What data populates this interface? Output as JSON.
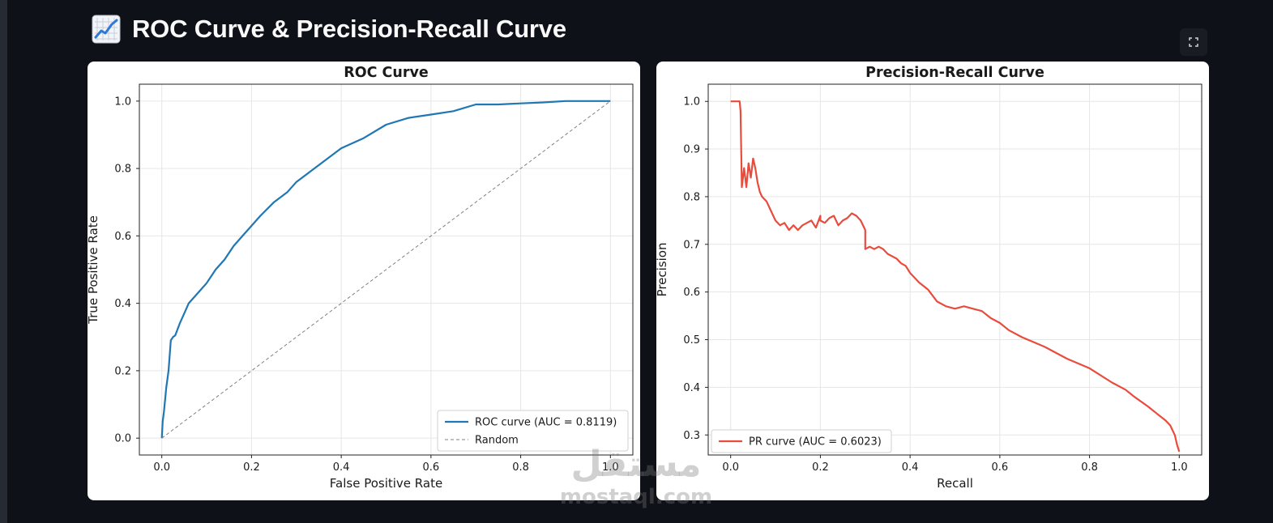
{
  "page": {
    "title": "ROC Curve & Precision-Recall Curve",
    "icon": "chart-increasing-icon",
    "background": "#0e1117",
    "fullscreen_icon": "expand-icon"
  },
  "watermark": {
    "arabic": "مستقل",
    "latin": "mostaql.com"
  },
  "chart_data": [
    {
      "type": "line",
      "title": "ROC Curve",
      "xlabel": "False Positive Rate",
      "ylabel": "True Positive Rate",
      "xlim": [
        -0.05,
        1.05
      ],
      "ylim": [
        -0.05,
        1.05
      ],
      "xticks": [
        "0.0",
        "0.2",
        "0.4",
        "0.6",
        "0.8",
        "1.0"
      ],
      "yticks": [
        "0.0",
        "0.2",
        "0.4",
        "0.6",
        "0.8",
        "1.0"
      ],
      "grid": true,
      "legend_position": "lower-right",
      "series": [
        {
          "name": "ROC curve (AUC = 0.8119)",
          "color": "#1f77b4",
          "style": "solid",
          "x": [
            0,
            0.002,
            0.005,
            0.01,
            0.015,
            0.02,
            0.025,
            0.03,
            0.04,
            0.05,
            0.06,
            0.08,
            0.1,
            0.12,
            0.14,
            0.16,
            0.18,
            0.2,
            0.22,
            0.25,
            0.28,
            0.3,
            0.33,
            0.36,
            0.4,
            0.45,
            0.5,
            0.55,
            0.6,
            0.65,
            0.7,
            0.75,
            0.8,
            0.85,
            0.9,
            0.95,
            1.0
          ],
          "y": [
            0,
            0.05,
            0.08,
            0.15,
            0.2,
            0.29,
            0.3,
            0.305,
            0.34,
            0.37,
            0.4,
            0.43,
            0.46,
            0.5,
            0.53,
            0.57,
            0.6,
            0.63,
            0.66,
            0.7,
            0.73,
            0.76,
            0.79,
            0.82,
            0.86,
            0.89,
            0.93,
            0.95,
            0.96,
            0.97,
            0.99,
            0.99,
            0.993,
            0.996,
            1.0,
            1.0,
            1.0
          ]
        },
        {
          "name": "Random",
          "color": "#808080",
          "style": "dashed",
          "x": [
            0,
            1
          ],
          "y": [
            0,
            1
          ]
        }
      ]
    },
    {
      "type": "line",
      "title": "Precision-Recall Curve",
      "xlabel": "Recall",
      "ylabel": "Precision",
      "xlim": [
        -0.05,
        1.05
      ],
      "ylim": [
        0.258,
        1.036
      ],
      "xticks": [
        "0.0",
        "0.2",
        "0.4",
        "0.6",
        "0.8",
        "1.0"
      ],
      "yticks": [
        "0.3",
        "0.4",
        "0.5",
        "0.6",
        "0.7",
        "0.8",
        "0.9",
        "1.0"
      ],
      "grid": true,
      "legend_position": "lower-left",
      "series": [
        {
          "name": "PR curve (AUC = 0.6023)",
          "color": "#e74c3c",
          "style": "solid",
          "x": [
            0,
            0.02,
            0.022,
            0.025,
            0.03,
            0.035,
            0.04,
            0.045,
            0.05,
            0.055,
            0.06,
            0.065,
            0.07,
            0.08,
            0.09,
            0.1,
            0.11,
            0.12,
            0.13,
            0.14,
            0.15,
            0.16,
            0.17,
            0.18,
            0.19,
            0.2,
            0.2,
            0.21,
            0.22,
            0.23,
            0.24,
            0.25,
            0.26,
            0.27,
            0.28,
            0.29,
            0.3,
            0.3,
            0.31,
            0.32,
            0.33,
            0.34,
            0.35,
            0.36,
            0.37,
            0.38,
            0.39,
            0.4,
            0.42,
            0.44,
            0.46,
            0.48,
            0.5,
            0.52,
            0.54,
            0.56,
            0.58,
            0.6,
            0.62,
            0.65,
            0.7,
            0.75,
            0.8,
            0.85,
            0.88,
            0.9,
            0.93,
            0.95,
            0.97,
            0.98,
            0.99,
            0.995,
            1.0
          ],
          "y": [
            1.0,
            1.0,
            0.98,
            0.82,
            0.86,
            0.82,
            0.87,
            0.84,
            0.88,
            0.86,
            0.83,
            0.81,
            0.8,
            0.79,
            0.77,
            0.75,
            0.74,
            0.745,
            0.73,
            0.74,
            0.73,
            0.74,
            0.745,
            0.75,
            0.735,
            0.76,
            0.75,
            0.745,
            0.755,
            0.76,
            0.74,
            0.75,
            0.755,
            0.765,
            0.76,
            0.75,
            0.73,
            0.69,
            0.695,
            0.69,
            0.695,
            0.69,
            0.68,
            0.675,
            0.67,
            0.66,
            0.655,
            0.64,
            0.62,
            0.605,
            0.58,
            0.57,
            0.565,
            0.57,
            0.565,
            0.56,
            0.545,
            0.535,
            0.52,
            0.505,
            0.485,
            0.46,
            0.44,
            0.41,
            0.395,
            0.38,
            0.36,
            0.345,
            0.33,
            0.32,
            0.3,
            0.28,
            0.265
          ]
        }
      ]
    }
  ]
}
